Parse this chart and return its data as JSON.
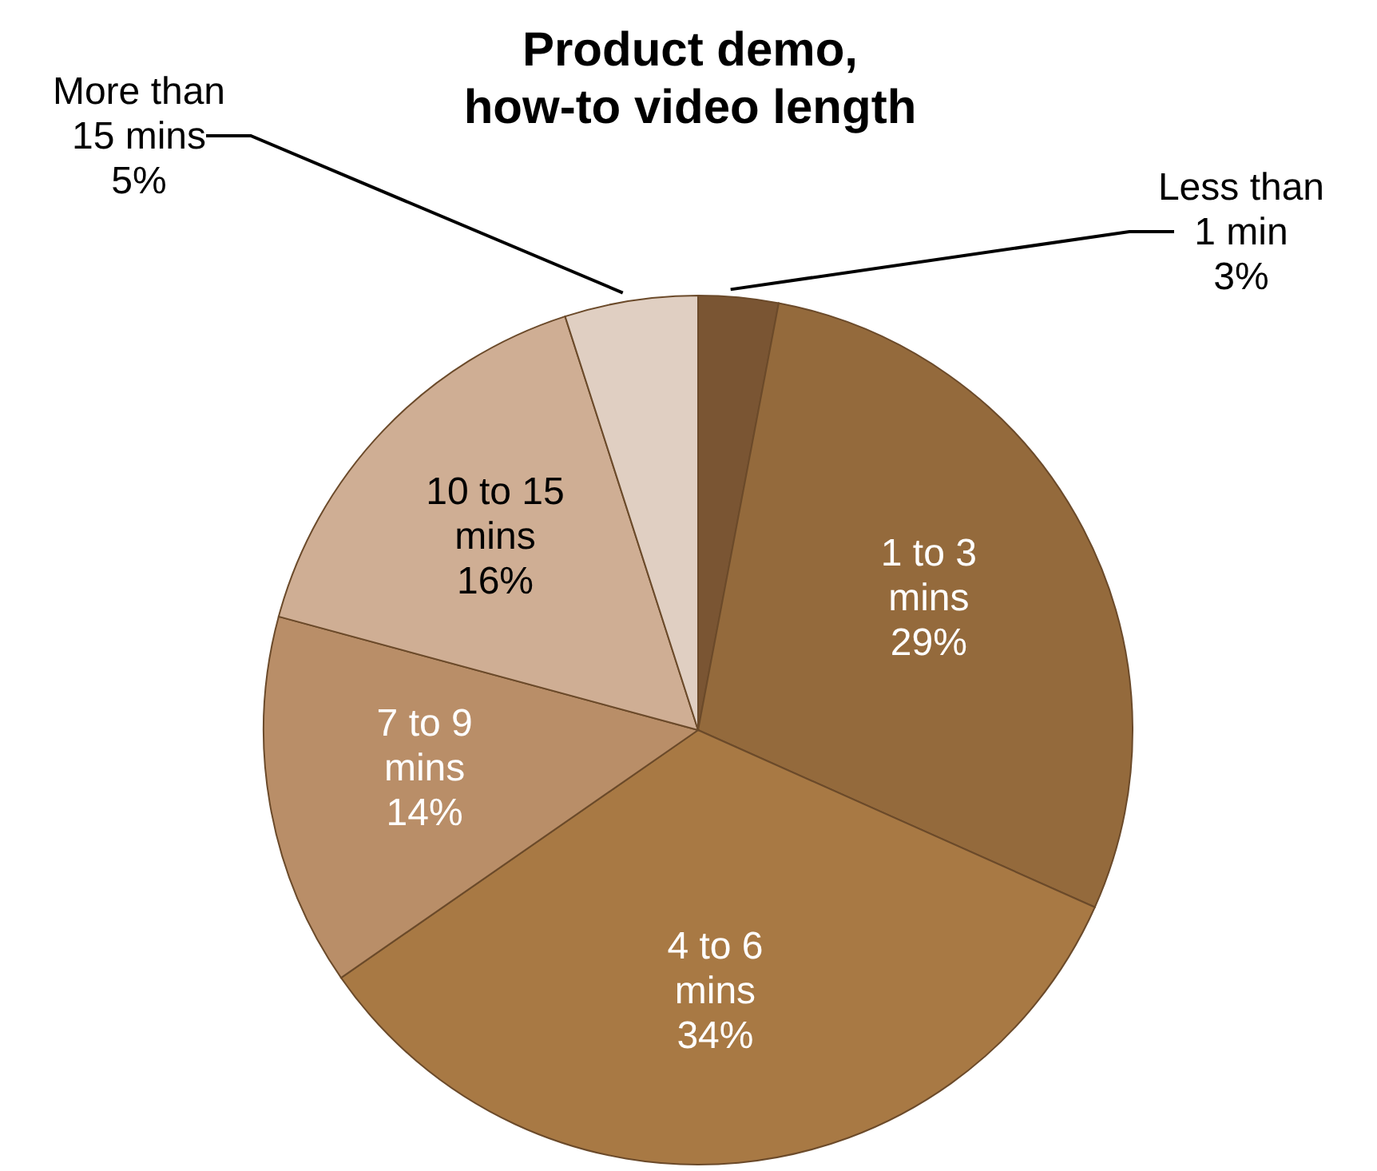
{
  "chart_data": {
    "type": "pie",
    "title": "Product demo, how-to video length",
    "categories": [
      "Less than 1 min",
      "1 to 3 mins",
      "4 to 6 mins",
      "7 to 9 mins",
      "10 to 15 mins",
      "More than 15 mins"
    ],
    "values": [
      3,
      29,
      34,
      14,
      16,
      5
    ],
    "colors": [
      "#7a5533",
      "#946a3c",
      "#a87944",
      "#b98e68",
      "#cfae94",
      "#e0cfc2"
    ],
    "value_labels": [
      "3%",
      "29%",
      "34%",
      "14%",
      "16%",
      "5%"
    ]
  }
}
